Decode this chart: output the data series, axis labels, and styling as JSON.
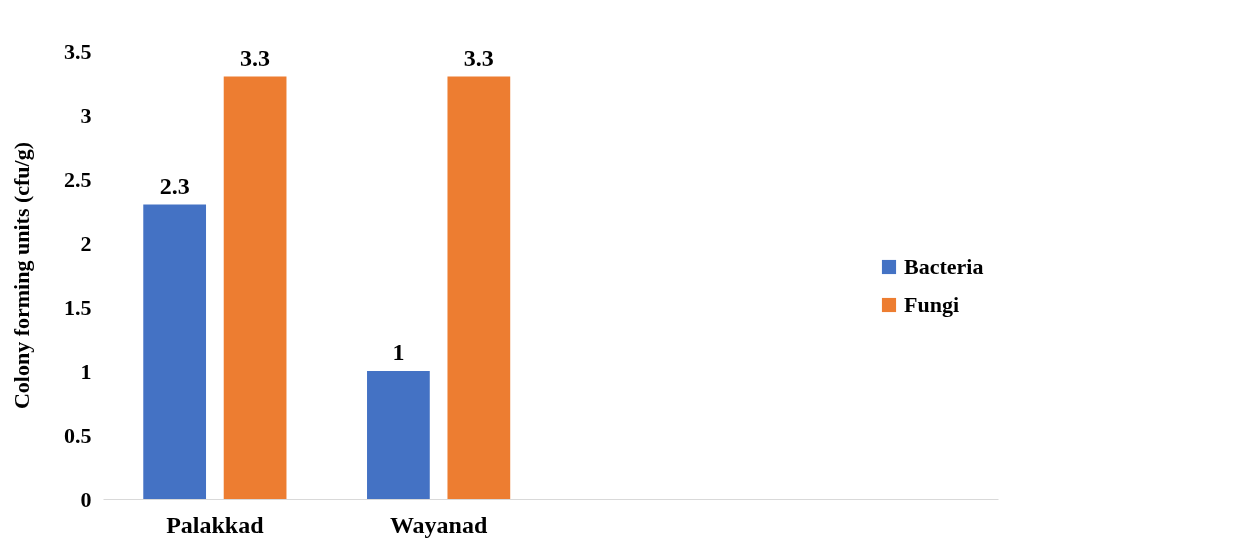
{
  "chart_data": {
    "type": "bar",
    "ylabel": "Colony forming units (cfu/g)",
    "categories": [
      "Palakkad",
      "Wayanad",
      null,
      null
    ],
    "series": [
      {
        "name": "Bacteria",
        "color": "#4472c4",
        "values": [
          2.3,
          1,
          null,
          null
        ]
      },
      {
        "name": "Fungi",
        "color": "#ed7d31",
        "values": [
          3.3,
          3.3,
          null,
          null
        ]
      }
    ],
    "ylim": [
      0,
      3.5
    ],
    "yticks": [
      0,
      0.5,
      1,
      1.5,
      2,
      2.5,
      3,
      3.5
    ],
    "data_labels": true,
    "legend": "right",
    "grid": false
  }
}
